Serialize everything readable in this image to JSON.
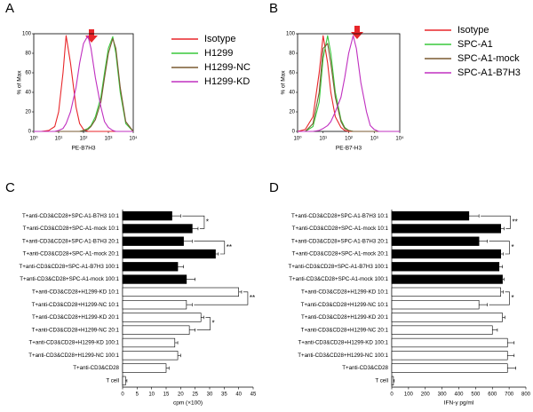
{
  "chart_data": [
    {
      "type": "line",
      "panel_label": "A",
      "xlabel": "PE-B7H3",
      "ylabel": "% of Max",
      "xscale": "log",
      "xlim": [
        1,
        10000
      ],
      "ylim": [
        0,
        100
      ],
      "xticks": [
        {
          "value": 1,
          "label": "10⁰"
        },
        {
          "value": 10,
          "label": "10¹"
        },
        {
          "value": 100,
          "label": "10²"
        },
        {
          "value": 1000,
          "label": "10³"
        },
        {
          "value": 10000,
          "label": "10⁴"
        }
      ],
      "yticks": [
        0,
        20,
        40,
        60,
        80,
        100
      ],
      "x": [
        1,
        2,
        4,
        7,
        10,
        15,
        20,
        30,
        50,
        70,
        100,
        150,
        200,
        300,
        500,
        700,
        1000,
        1500,
        2000,
        3000,
        5000,
        10000
      ],
      "series": [
        {
          "name": "Isotype",
          "color": "#e8262a",
          "values": [
            0,
            0,
            1,
            5,
            20,
            60,
            98,
            70,
            25,
            8,
            2,
            0,
            0,
            0,
            0,
            0,
            0,
            0,
            0,
            0,
            0,
            0
          ]
        },
        {
          "name": "H1299",
          "color": "#39c83c",
          "values": [
            0,
            0,
            0,
            0,
            0,
            0,
            0,
            0,
            0,
            0,
            1,
            3,
            6,
            15,
            35,
            60,
            85,
            97,
            80,
            40,
            8,
            0
          ]
        },
        {
          "name": "H1299-NC",
          "color": "#7a5a30",
          "values": [
            0,
            0,
            0,
            0,
            0,
            0,
            0,
            0,
            0,
            0,
            1,
            2,
            5,
            12,
            30,
            55,
            80,
            95,
            85,
            45,
            10,
            0
          ]
        },
        {
          "name": "H1299-KD",
          "color": "#c030c0",
          "values": [
            0,
            0,
            0,
            0,
            1,
            3,
            8,
            20,
            45,
            70,
            90,
            98,
            85,
            55,
            25,
            10,
            4,
            1,
            0,
            0,
            0,
            0
          ]
        }
      ]
    },
    {
      "type": "line",
      "panel_label": "B",
      "xlabel": "PE-B7-H3",
      "ylabel": "% of Max",
      "xscale": "log",
      "xlim": [
        1,
        10000
      ],
      "ylim": [
        0,
        100
      ],
      "xticks": [
        {
          "value": 1,
          "label": "10⁰"
        },
        {
          "value": 10,
          "label": "10¹"
        },
        {
          "value": 100,
          "label": "10²"
        },
        {
          "value": 1000,
          "label": "10³"
        },
        {
          "value": 10000,
          "label": "10⁴"
        }
      ],
      "yticks": [
        0,
        20,
        40,
        60,
        80,
        100
      ],
      "x": [
        1,
        2,
        4,
        7,
        10,
        15,
        20,
        30,
        50,
        70,
        100,
        150,
        200,
        300,
        500,
        700,
        1000,
        1500,
        2000,
        3000,
        5000,
        10000
      ],
      "series": [
        {
          "name": "Isotype",
          "color": "#e8262a",
          "values": [
            0,
            2,
            15,
            60,
            98,
            70,
            40,
            15,
            4,
            1,
            0,
            0,
            0,
            0,
            0,
            0,
            0,
            0,
            0,
            0,
            0,
            0
          ]
        },
        {
          "name": "SPC-A1",
          "color": "#39c83c",
          "values": [
            0,
            0,
            5,
            30,
            75,
            98,
            80,
            40,
            12,
            4,
            1,
            0,
            0,
            0,
            0,
            0,
            0,
            0,
            0,
            0,
            0,
            0
          ]
        },
        {
          "name": "SPC-A1-mock",
          "color": "#7a5a30",
          "values": [
            0,
            0,
            8,
            40,
            85,
            90,
            70,
            35,
            10,
            3,
            1,
            0,
            0,
            0,
            0,
            0,
            0,
            0,
            0,
            0,
            0,
            0
          ]
        },
        {
          "name": "SPC-A1-B7H3",
          "color": "#c030c0",
          "values": [
            0,
            0,
            0,
            1,
            3,
            6,
            10,
            20,
            35,
            55,
            80,
            98,
            85,
            50,
            20,
            6,
            2,
            0,
            0,
            0,
            0,
            0
          ]
        }
      ]
    },
    {
      "type": "hbar",
      "panel_label": "C",
      "xlabel": "cpm (×100)",
      "xlim": [
        0,
        45
      ],
      "xticks": [
        0,
        5,
        10,
        15,
        20,
        25,
        30,
        35,
        40,
        45
      ],
      "categories": [
        "T+anti-CD3&CD28+SPC-A1-B7H3 10:1",
        "T+anti-CD3&CD28+SPC-A1-mock 10:1",
        "T+anti-CD3&CD28+SPC-A1-B7H3 20:1",
        "T+anti-CD3&CD28+SPC-A1-mock 20:1",
        "T+anti-CD3&CD28+SPC-A1-B7H3 100:1",
        "T+anti-CD3&CD28+SPC-A1-mock 100:1",
        "T+anti-CD3&CD28+H1299-KD 10:1",
        "T+anti-CD3&CD28+H1299-NC 10:1",
        "T+anti-CD3&CD28+H1299-KD 20:1",
        "T+anti-CD3&CD28+H1299-NC 20:1",
        "T+anti-CD3&CD28+H1299-KD 100:1",
        "T+anti-CD3&CD28+H1299-NC 100:1",
        "T+anti-CD3&CD28",
        "T cell"
      ],
      "values": [
        17,
        24,
        21,
        32,
        19,
        22,
        40,
        22,
        27,
        23,
        18,
        19,
        15,
        1
      ],
      "errors": [
        3,
        2,
        3,
        1,
        2,
        3,
        1,
        2,
        1,
        2,
        1,
        1,
        1,
        0.5
      ],
      "colors": [
        "#000000",
        "#000000",
        "#000000",
        "#000000",
        "#000000",
        "#000000",
        "#ffffff",
        "#ffffff",
        "#ffffff",
        "#ffffff",
        "#ffffff",
        "#ffffff",
        "#ffffff",
        "#ffffff"
      ],
      "significance": [
        {
          "rows": [
            0,
            1
          ],
          "label": "*"
        },
        {
          "rows": [
            2,
            3
          ],
          "label": "**"
        },
        {
          "rows": [
            6,
            7
          ],
          "label": "**"
        },
        {
          "rows": [
            8,
            9
          ],
          "label": "*"
        }
      ]
    },
    {
      "type": "hbar",
      "panel_label": "D",
      "xlabel": "IFN-γ pg/ml",
      "xlim": [
        0,
        800
      ],
      "xticks": [
        0,
        100,
        200,
        300,
        400,
        500,
        600,
        700,
        800
      ],
      "categories": [
        "T+anti-CD3&CD28+SPC-A1-B7H3 10:1",
        "T+anti-CD3&CD28+SPC-A1-mock 10:1",
        "T+anti-CD3&CD28+SPC-A1-B7H3 20:1",
        "T+anti-CD3&CD28+SPC-A1-mock 20:1",
        "T+anti-CD3&CD28+SPC-A1-B7H3 100:1",
        "T+anti-CD3&CD28+SPC-A1-mock 100:1",
        "T+anti-CD3&CD28+H1299-KD 10:1",
        "T+anti-CD3&CD28+H1299-NC 10:1",
        "T+anti-CD3&CD28+H1299-KD 20:1",
        "T+anti-CD3&CD28+H1299-NC 20:1",
        "T+anti-CD3&CD28+H1299-KD 100:1",
        "T+anti-CD3&CD28+H1299-NC 100:1",
        "T+anti-CD3&CD28",
        "T cell"
      ],
      "values": [
        460,
        650,
        520,
        650,
        640,
        660,
        650,
        520,
        660,
        600,
        690,
        690,
        690,
        10
      ],
      "errors": [
        60,
        20,
        50,
        15,
        20,
        10,
        15,
        50,
        15,
        30,
        40,
        40,
        50,
        5
      ],
      "colors": [
        "#000000",
        "#000000",
        "#000000",
        "#000000",
        "#000000",
        "#000000",
        "#ffffff",
        "#ffffff",
        "#ffffff",
        "#ffffff",
        "#ffffff",
        "#ffffff",
        "#ffffff",
        "#ffffff"
      ],
      "significance": [
        {
          "rows": [
            0,
            1
          ],
          "label": "**"
        },
        {
          "rows": [
            2,
            3
          ],
          "label": "*"
        },
        {
          "rows": [
            6,
            7
          ],
          "label": "*"
        }
      ]
    }
  ]
}
